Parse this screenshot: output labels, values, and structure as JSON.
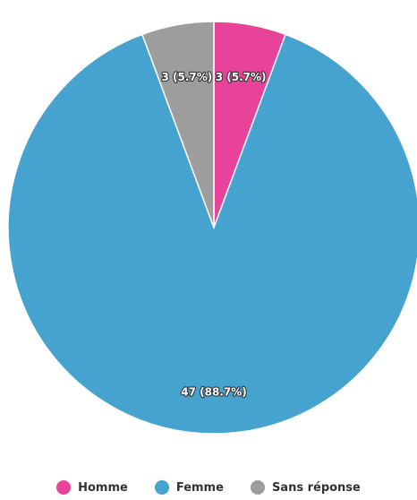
{
  "chart_data": {
    "type": "pie",
    "title": "",
    "legend_position": "bottom",
    "slices": [
      {
        "name": "Homme",
        "value": 3,
        "percent": 5.7,
        "label": "3 (5.7%)",
        "color": "#e8429b"
      },
      {
        "name": "Femme",
        "value": 47,
        "percent": 88.7,
        "label": "47 (88.7%)",
        "color": "#46a3cf"
      },
      {
        "name": "Sans réponse",
        "value": 3,
        "percent": 5.7,
        "label": "3 (5.7%)",
        "color": "#9d9d9d"
      }
    ]
  }
}
